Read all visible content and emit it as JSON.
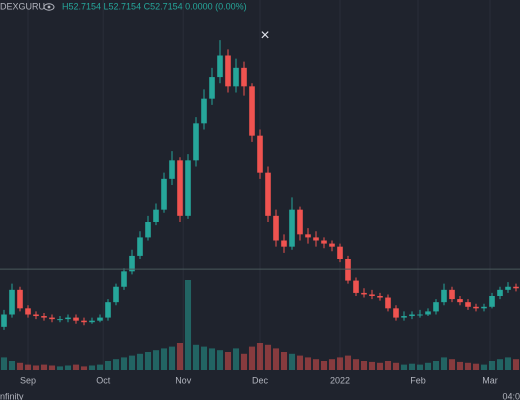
{
  "chart_data": {
    "type": "candlestick",
    "symbol": "DEXGURU",
    "legend_text": "H52.7154 L52.7154 C52.7154 0.0000 (0.00%)",
    "close_icon": "×",
    "footer_left": "nfinity",
    "footer_right": "04:0",
    "up_color": "#26a69a",
    "down_color": "#ef5350",
    "price_line": 52.7154,
    "ylim": [
      20,
      140
    ],
    "volume_lim": [
      0,
      100
    ],
    "xlim": [
      -0.5,
      64.5
    ],
    "xticks": [
      {
        "value": 3,
        "label": "Sep"
      },
      {
        "value": 12.4,
        "label": "Oct"
      },
      {
        "value": 22.4,
        "label": "Nov"
      },
      {
        "value": 32,
        "label": "Dec"
      },
      {
        "value": 42,
        "label": "2022"
      },
      {
        "value": 51.75,
        "label": "Feb"
      },
      {
        "value": 60.75,
        "label": "Mar"
      }
    ],
    "open": [
      34,
      38,
      46,
      40,
      38,
      37.5,
      37,
      36.5,
      36.5,
      37,
      36,
      35.5,
      36,
      37,
      42,
      47,
      52,
      57,
      63,
      68,
      72,
      82,
      88,
      70,
      88,
      100,
      108,
      115,
      122,
      112,
      118,
      112,
      96,
      84,
      70,
      62,
      60,
      72,
      64,
      63,
      62,
      61,
      60,
      56,
      49,
      45,
      44.5,
      44,
      43.5,
      40,
      37,
      37.5,
      38,
      38,
      39,
      42,
      46,
      43,
      42,
      40.5,
      40,
      40.5,
      44,
      46,
      47
    ],
    "high": [
      39.5,
      48,
      47,
      41,
      39,
      38.5,
      38,
      37.5,
      38,
      38,
      37,
      37,
      38,
      43,
      48,
      53,
      59,
      65,
      70,
      74,
      84,
      91,
      89,
      90,
      102,
      111,
      118,
      127,
      124,
      121,
      120,
      113,
      98,
      86,
      72,
      64,
      76,
      73,
      66,
      65,
      63,
      62,
      61,
      57,
      50,
      46.5,
      46,
      45,
      44.5,
      41,
      39,
      39,
      39.5,
      40,
      43,
      48,
      47,
      44,
      43,
      41.5,
      41.5,
      45,
      47,
      48.5,
      48
    ],
    "low": [
      33,
      37,
      39,
      37,
      36.5,
      36,
      35.5,
      35.5,
      35.5,
      35,
      34.5,
      35,
      35.5,
      36,
      41,
      46,
      51,
      56,
      62,
      67,
      71,
      80,
      68,
      69,
      86,
      98,
      106,
      113,
      110,
      110,
      109,
      94,
      82,
      68,
      60,
      58,
      59,
      62,
      61,
      60,
      59.5,
      58.5,
      55,
      48,
      44,
      43.5,
      43,
      42.5,
      39,
      36,
      36,
      36.5,
      37,
      37.5,
      38,
      41,
      42,
      41,
      39.5,
      39,
      39,
      40,
      43,
      45,
      45.5
    ],
    "close": [
      38,
      46,
      40,
      38,
      37.5,
      37,
      36.5,
      36.5,
      37,
      36,
      35.5,
      36,
      37,
      42,
      47,
      52,
      57,
      63,
      68,
      72,
      82,
      88,
      70,
      88,
      100,
      108,
      115,
      122,
      112,
      118,
      112,
      96,
      84,
      70,
      62,
      60,
      72,
      64,
      63,
      62,
      61,
      60,
      56,
      49,
      45,
      44.5,
      44,
      43.5,
      40,
      37,
      37.5,
      38,
      38,
      39,
      42,
      46,
      43,
      42,
      40.5,
      40,
      40.5,
      44,
      46,
      47,
      46.5
    ],
    "volume": [
      14,
      10,
      8,
      6,
      5,
      6,
      5,
      4,
      5,
      6,
      4,
      5,
      6,
      10,
      12,
      14,
      16,
      18,
      20,
      22,
      24,
      26,
      30,
      100,
      28,
      26,
      24,
      22,
      20,
      24,
      18,
      26,
      30,
      28,
      24,
      20,
      18,
      16,
      14,
      12,
      10,
      12,
      14,
      16,
      12,
      10,
      9,
      8,
      10,
      8,
      6,
      7,
      6,
      8,
      10,
      14,
      12,
      9,
      8,
      7,
      6,
      10,
      12,
      14,
      12
    ]
  }
}
